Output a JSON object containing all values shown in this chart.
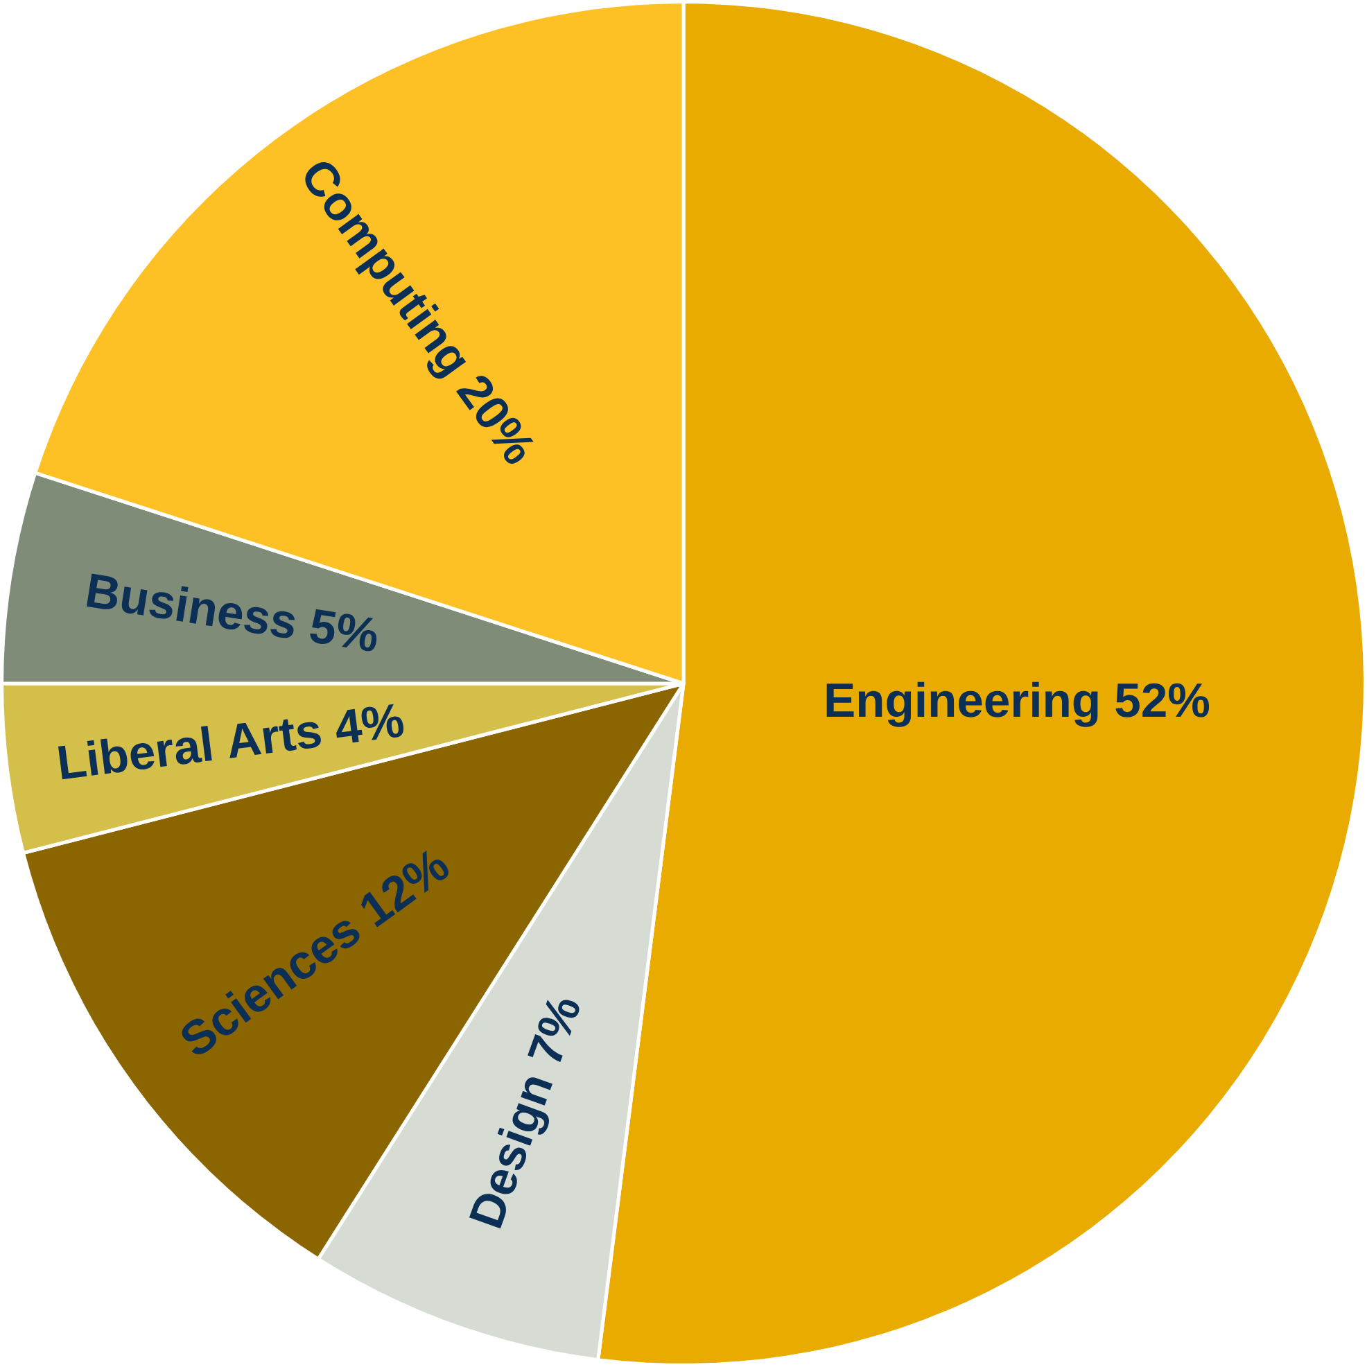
{
  "chart_data": {
    "type": "pie",
    "categories": [
      "Engineering",
      "Design",
      "Sciences",
      "Liberal Arts",
      "Business",
      "Computing"
    ],
    "values": [
      52,
      7,
      12,
      4,
      5,
      20
    ],
    "colors": [
      "#e9ab00",
      "#d6dbd4",
      "#8a6500",
      "#d5bf4b",
      "#7f8c78",
      "#fdc125"
    ],
    "data_labels": true,
    "value_labels": [
      "52%",
      "7%",
      "12%",
      "4%",
      "5%",
      "20%"
    ]
  }
}
